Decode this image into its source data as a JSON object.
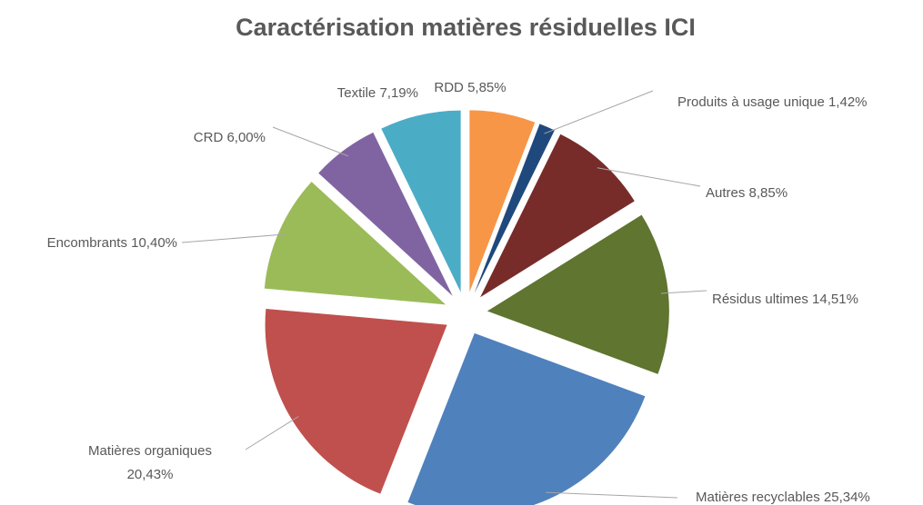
{
  "chart_data": {
    "type": "pie",
    "title": "Caractérisation matières résiduelles ICI",
    "categories": [
      "RDD",
      "Produits à usage unique",
      "Autres",
      "Résidus ultimes",
      "Matières recyclables",
      "Matières organiques",
      "Encombrants",
      "CRD",
      "Textile"
    ],
    "values": [
      5.85,
      1.42,
      8.85,
      14.51,
      25.34,
      20.43,
      10.4,
      6.0,
      7.19
    ],
    "value_labels": [
      "5,85%",
      "1,42%",
      "8,85%",
      "14,51%",
      "25,34%",
      "20,43%",
      "10,40%",
      "6,00%",
      "7,19%"
    ],
    "colors": [
      "#f79646",
      "#1f497d",
      "#772c2a",
      "#5f7530",
      "#4f81bd",
      "#c0504d",
      "#9bbb59",
      "#8064a2",
      "#4bacc6"
    ]
  }
}
